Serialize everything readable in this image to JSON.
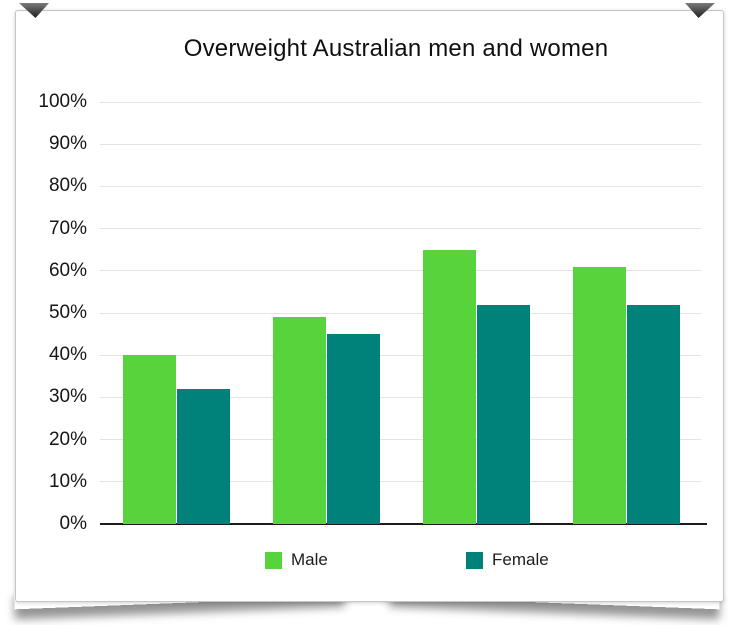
{
  "chart_data": {
    "type": "bar",
    "title": "Overweight Australian men and women",
    "categories": [
      "",
      "",
      "",
      ""
    ],
    "series": [
      {
        "name": "Male",
        "color": "#57d33b",
        "values": [
          40,
          49,
          65,
          61
        ]
      },
      {
        "name": "Female",
        "color": "#00827b",
        "values": [
          32,
          45,
          52,
          52
        ]
      }
    ],
    "xlabel": "",
    "ylabel": "",
    "y_ticks": [
      "0%",
      "10%",
      "20%",
      "30%",
      "40%",
      "50%",
      "60%",
      "70%",
      "80%",
      "90%",
      "100%"
    ],
    "ylim": [
      0,
      100
    ],
    "grid": true,
    "legend_position": "bottom"
  },
  "frame": {
    "style": "white card, thin gray border, curled corners with bottom lift shadow"
  }
}
